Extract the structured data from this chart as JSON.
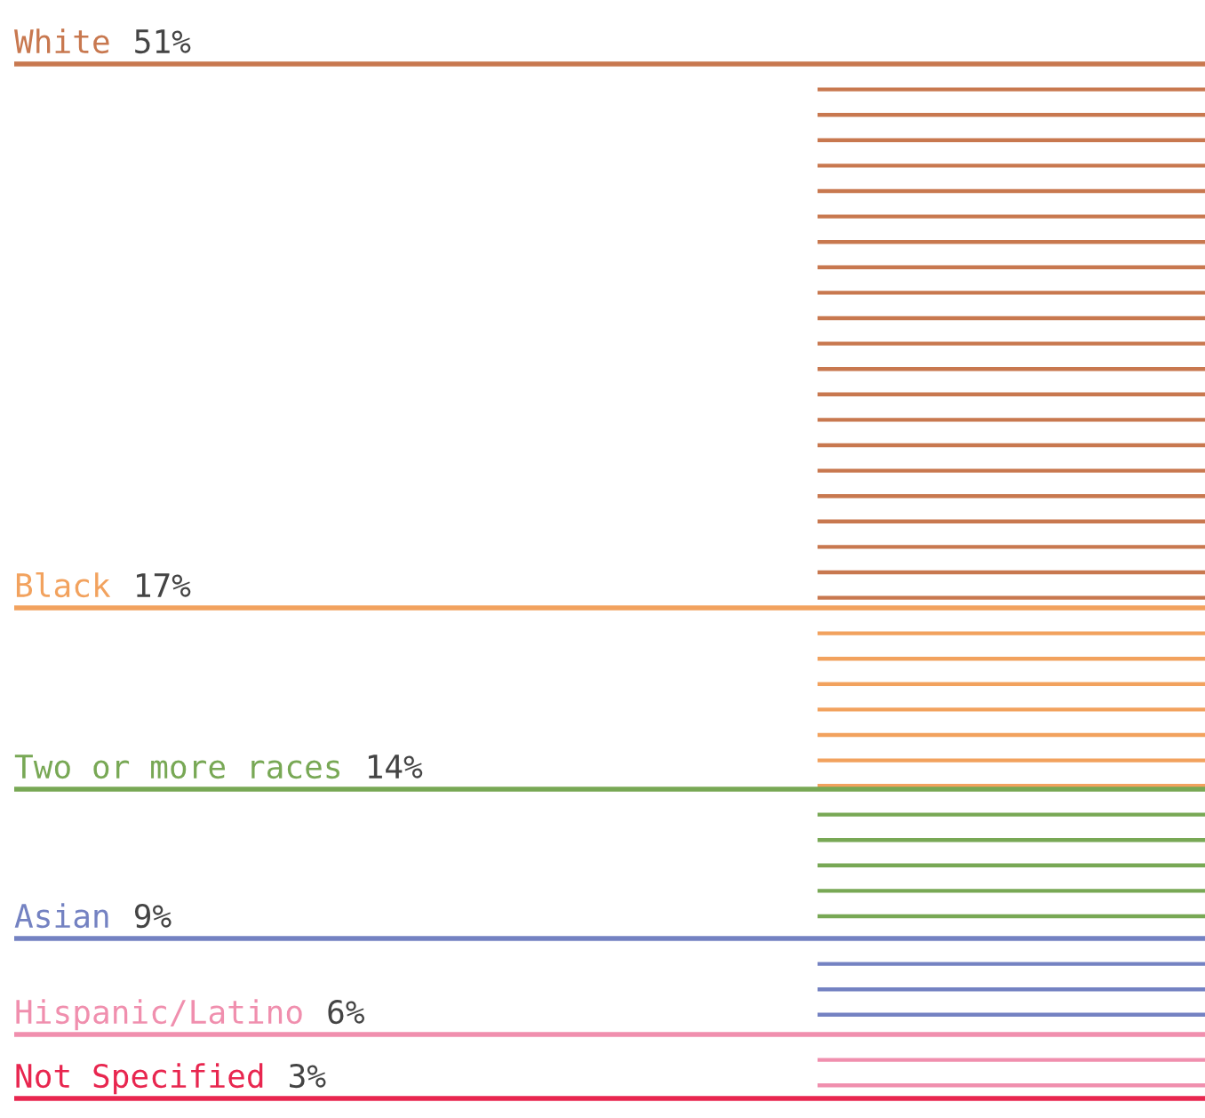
{
  "chart_data": {
    "type": "other",
    "categories": [
      "White",
      "Black",
      "Two or more races",
      "Asian",
      "Hispanic/Latino",
      "Not Specified"
    ],
    "values": [
      51,
      17,
      14,
      9,
      6,
      3
    ],
    "value_labels": [
      "51%",
      "17%",
      "14%",
      "9%",
      "6%",
      "3%"
    ],
    "colors": [
      "#c8784f",
      "#f2a25e",
      "#78a855",
      "#7482c2",
      "#f08fae",
      "#e8264f"
    ]
  }
}
